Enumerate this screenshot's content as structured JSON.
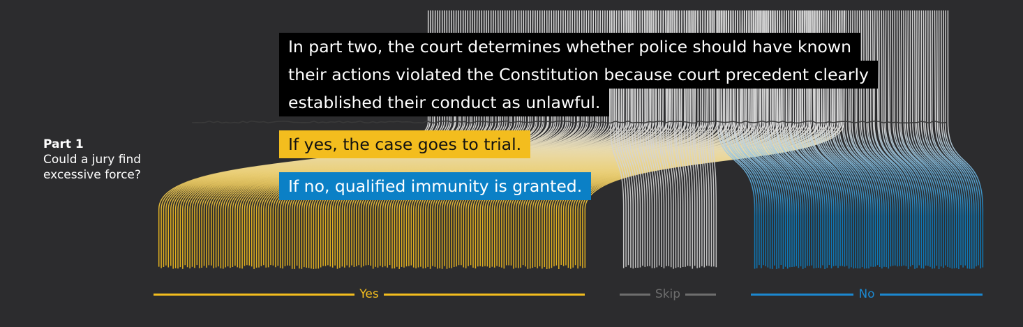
{
  "part_label": {
    "title": "Part 1",
    "question": "Could a jury find excessive force?"
  },
  "callouts": {
    "part_two": {
      "lines": [
        "In part two, the court determines whether police should have known",
        "their actions violated the Constitution because court precedent clearly",
        "established their conduct as unlawful."
      ]
    },
    "yes_text": "If yes, the case goes to trial.",
    "no_text": "If no, qualified immunity is granted."
  },
  "outcomes": [
    {
      "label": "Yes",
      "color": "#f3bd1e"
    },
    {
      "label": "Skip",
      "color": "#6e6e6e"
    },
    {
      "label": "No",
      "color": "#1c88d0"
    }
  ],
  "colors": {
    "background": "#2c2c2e",
    "strand": "#d9d9d9",
    "yes": "#f3bd1e",
    "no": "#0b80c6",
    "callout_bg": "#000000"
  }
}
